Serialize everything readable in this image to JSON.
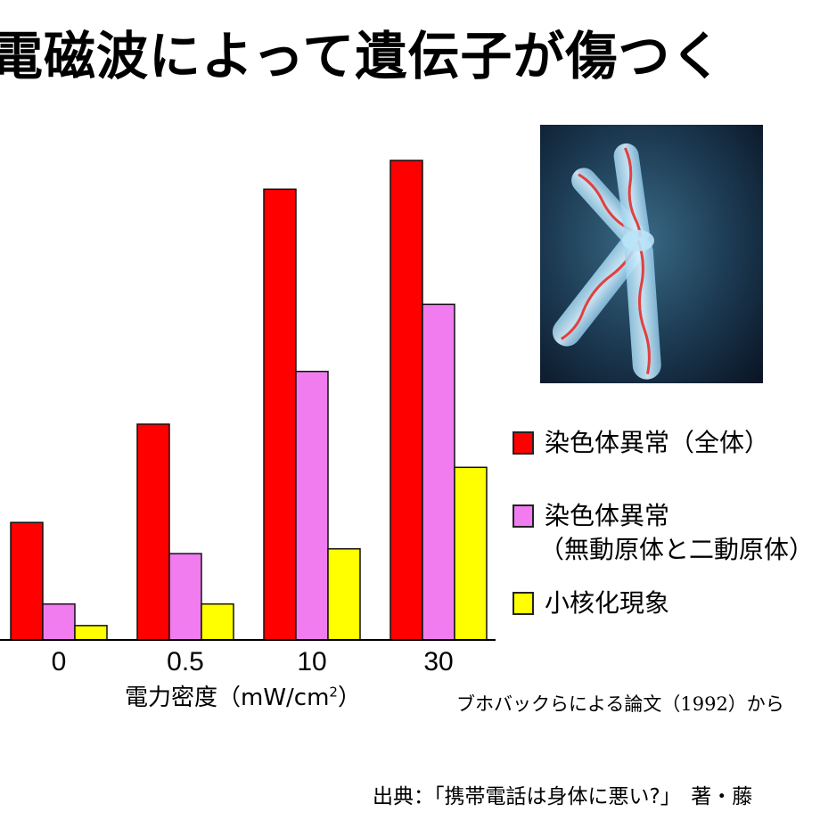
{
  "title": "電磁波によって遺伝子が傷つく",
  "chart_data": {
    "type": "bar",
    "categories": [
      "0",
      "0.5",
      "10",
      "30"
    ],
    "xlabel": "電力密度（mW/cm",
    "xlabel_sup": "2",
    "xlabel_close": "）",
    "ylabel": "",
    "ylim": [
      0,
      100
    ],
    "grid": false,
    "legend_position": "right",
    "series": [
      {
        "name": "染色体異常（全体）",
        "color": "#ff0000",
        "values": [
          24.5,
          45,
          94,
          100
        ]
      },
      {
        "name": "染色体異常\n（無動原体と二動原体）",
        "color": "#f07cf0",
        "values": [
          7.5,
          18,
          56,
          70
        ]
      },
      {
        "name": "小核化現象",
        "color": "#ffff00",
        "values": [
          3,
          7.5,
          19,
          36
        ]
      }
    ]
  },
  "legend": {
    "items": [
      {
        "line1": "染色体異常（全体）",
        "line2": "",
        "color": "#ff0000"
      },
      {
        "line1": "染色体異常",
        "line2": "（無動原体と二動原体）",
        "color": "#f07cf0"
      },
      {
        "line1": "小核化現象",
        "line2": "",
        "color": "#ffff00"
      }
    ]
  },
  "image": {
    "icon": "chromosome-icon"
  },
  "source_note": "ブホバックらによる論文（1992）から",
  "citation": "出典：「携帯電話は身体に悪い?」　著・藤"
}
